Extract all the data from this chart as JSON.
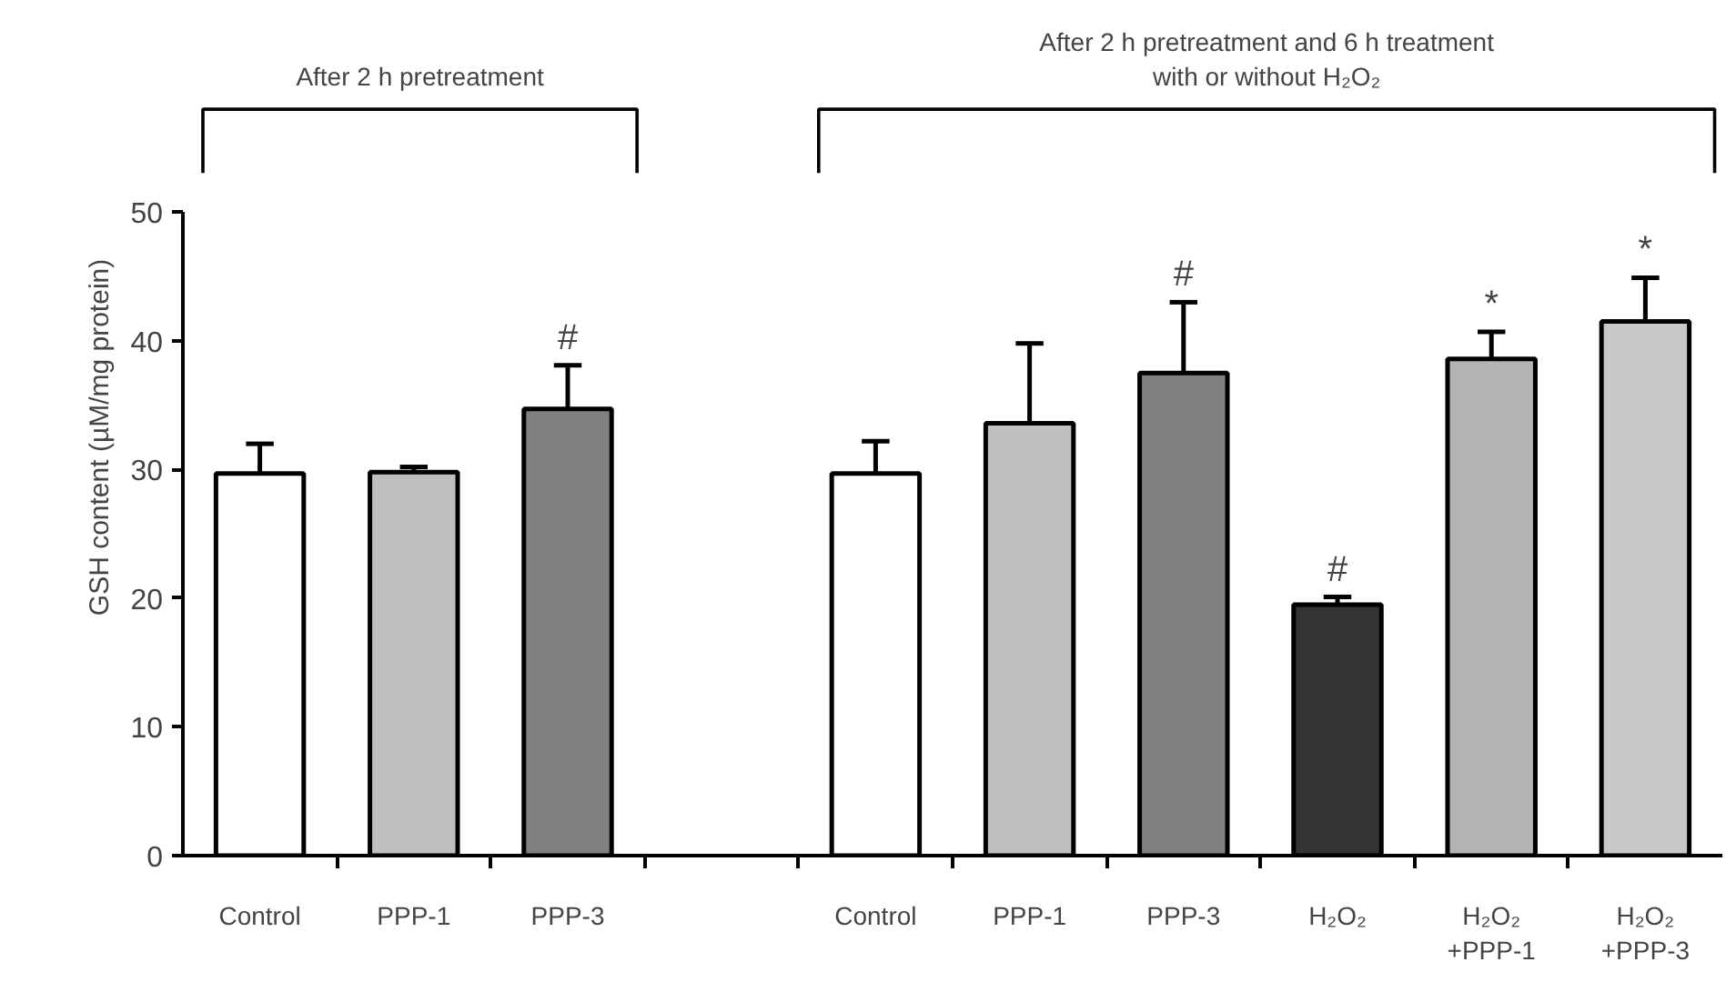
{
  "chart_data": {
    "type": "bar",
    "ylabel": "GSH content (µM/mg protein)",
    "categories": [
      "Control",
      "PPP-1",
      "PPP-3",
      null,
      "Control",
      "PPP-1",
      "PPP-3",
      "H₂O₂",
      "H₂O₂\n+PPP-1",
      "H₂O₂\n+PPP-3"
    ],
    "values": [
      29.7,
      29.8,
      34.7,
      null,
      29.7,
      33.6,
      37.5,
      19.5,
      38.6,
      41.5
    ],
    "errors": [
      [
        29.7,
        32.0
      ],
      [
        29.8,
        30.2
      ],
      [
        34.7,
        38.1
      ],
      null,
      [
        29.7,
        32.2
      ],
      [
        33.6,
        39.8
      ],
      [
        37.5,
        43.0
      ],
      [
        19.5,
        20.1
      ],
      [
        38.6,
        40.7
      ],
      [
        41.5,
        44.9
      ]
    ],
    "colors": [
      "#ffffff",
      "#bfbfbf",
      "#808080",
      null,
      "#ffffff",
      "#bfbfbf",
      "#808080",
      "#333333",
      "#b4b4b4",
      "#c8c8c8"
    ],
    "ylim": [
      0,
      50
    ],
    "yticks": [
      0,
      10,
      20,
      30,
      40,
      50
    ],
    "grid": false,
    "value_labels": [
      null,
      null,
      "#",
      null,
      null,
      null,
      "#",
      "#",
      "*",
      "*"
    ],
    "annotations": [
      "After 2 h pretreatment",
      "After 2 h pretreatment and 6 h treatment\nwith or without H₂O₂"
    ]
  }
}
